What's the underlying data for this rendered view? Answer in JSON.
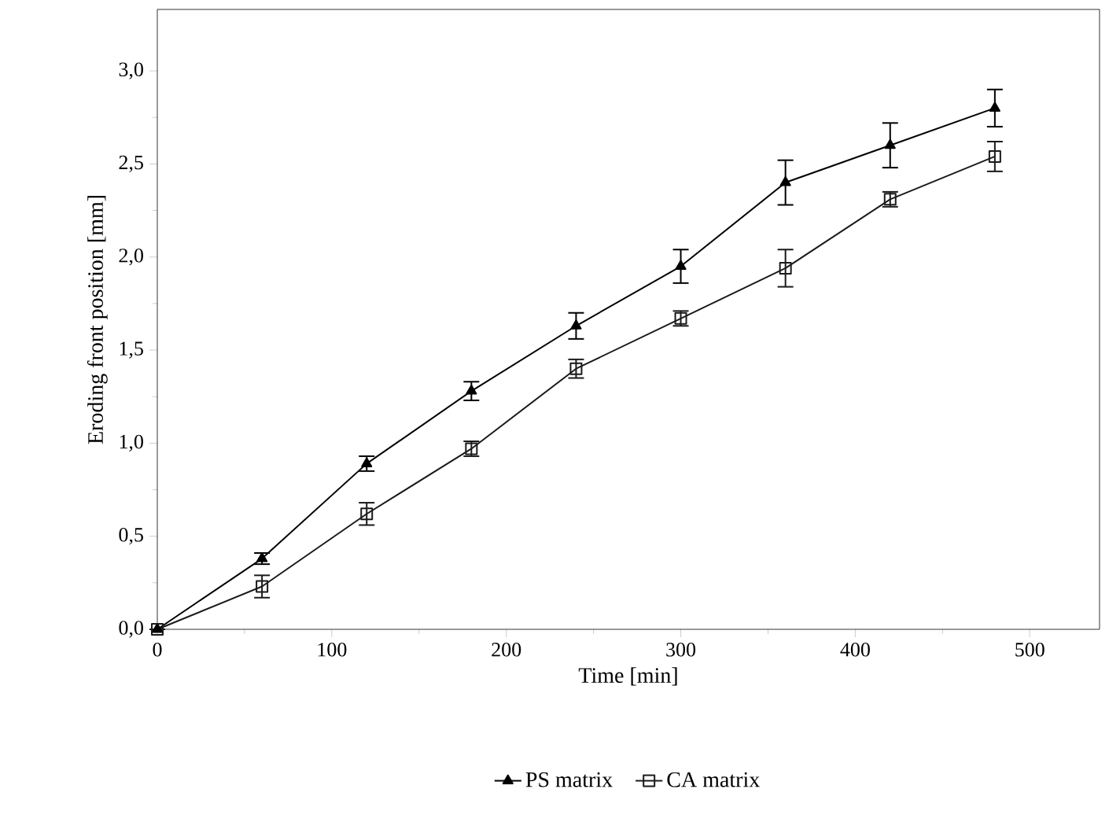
{
  "chart_data": {
    "type": "line",
    "xlabel": "Time [min]",
    "ylabel": "Eroding front position [mm]",
    "x": [
      0,
      60,
      120,
      180,
      240,
      300,
      360,
      420,
      480
    ],
    "series": [
      {
        "name": "PS matrix",
        "color": "#000000",
        "marker": "triangle",
        "values": [
          0,
          0.38,
          0.89,
          1.28,
          1.63,
          1.95,
          2.4,
          2.6,
          2.8
        ],
        "errors": [
          null,
          0.03,
          0.04,
          0.05,
          0.07,
          0.09,
          0.12,
          0.12,
          0.1
        ]
      },
      {
        "name": "CA matrix",
        "color": "#1a1a1a",
        "marker": "square",
        "values": [
          0,
          0.23,
          0.62,
          0.97,
          1.4,
          1.67,
          1.94,
          2.31,
          2.54
        ],
        "errors": [
          null,
          0.06,
          0.06,
          0.04,
          0.05,
          0.04,
          0.1,
          0.04,
          0.08
        ]
      }
    ],
    "xlim": [
      0,
      540
    ],
    "ylim": [
      0,
      3.33
    ],
    "xticks": [
      0,
      100,
      200,
      300,
      400,
      500
    ],
    "yticks": [
      {
        "value": 0,
        "label": "0,0"
      },
      {
        "value": 0.5,
        "label": "0,5"
      },
      {
        "value": 1,
        "label": "1,0"
      },
      {
        "value": 1.5,
        "label": "1,5"
      },
      {
        "value": 2,
        "label": "2,0"
      },
      {
        "value": 2.5,
        "label": "2,5"
      },
      {
        "value": 3,
        "label": "3,0"
      }
    ],
    "legend": "bottom"
  }
}
